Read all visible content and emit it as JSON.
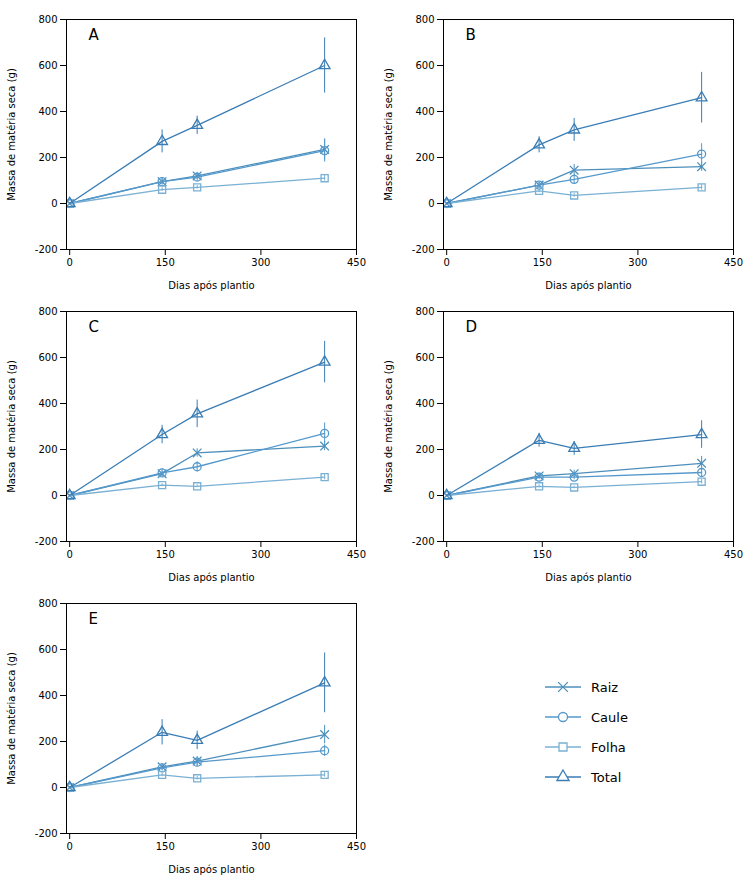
{
  "chart_data": [
    {
      "type": "line",
      "title": "A",
      "x": [
        0,
        145,
        200,
        400
      ],
      "xlabel": "Dias após plantio",
      "ylabel": "Massa de matéria seca (g)",
      "xlim": [
        -5,
        450
      ],
      "xticks": [
        0,
        150,
        300,
        450
      ],
      "ylim": [
        -200,
        800
      ],
      "yticks": [
        -200,
        0,
        200,
        400,
        600,
        800
      ],
      "grid": false,
      "series": [
        {
          "name": "Raiz",
          "color": "#4d8fbb",
          "marker": "x",
          "values": [
            0,
            95,
            120,
            235
          ],
          "yerr": [
            2,
            15,
            15,
            45
          ]
        },
        {
          "name": "Caule",
          "color": "#5599cc",
          "marker": "circle",
          "values": [
            0,
            95,
            115,
            230
          ],
          "yerr": [
            2,
            12,
            18,
            50
          ]
        },
        {
          "name": "Folha",
          "color": "#7ab0d4",
          "marker": "square",
          "values": [
            0,
            60,
            70,
            110
          ],
          "yerr": [
            2,
            8,
            8,
            12
          ]
        },
        {
          "name": "Total",
          "color": "#3a7db5",
          "marker": "triangle",
          "values": [
            0,
            270,
            340,
            600
          ],
          "yerr": [
            2,
            50,
            40,
            120
          ]
        }
      ]
    },
    {
      "type": "line",
      "title": "B",
      "x": [
        0,
        145,
        200,
        400
      ],
      "xlabel": "Dias após plantio",
      "ylabel": "Massa de matéria seca (g)",
      "xlim": [
        -5,
        450
      ],
      "xticks": [
        0,
        150,
        300,
        450
      ],
      "ylim": [
        -200,
        800
      ],
      "yticks": [
        -200,
        0,
        200,
        400,
        600,
        800
      ],
      "grid": false,
      "series": [
        {
          "name": "Raiz",
          "color": "#4d8fbb",
          "marker": "x",
          "values": [
            0,
            80,
            145,
            160
          ],
          "yerr": [
            2,
            12,
            25,
            20
          ]
        },
        {
          "name": "Caule",
          "color": "#5599cc",
          "marker": "circle",
          "values": [
            0,
            80,
            105,
            215
          ],
          "yerr": [
            2,
            12,
            20,
            45
          ]
        },
        {
          "name": "Folha",
          "color": "#7ab0d4",
          "marker": "square",
          "values": [
            0,
            55,
            35,
            70
          ],
          "yerr": [
            2,
            8,
            8,
            12
          ]
        },
        {
          "name": "Total",
          "color": "#3a7db5",
          "marker": "triangle",
          "values": [
            0,
            255,
            320,
            460
          ],
          "yerr": [
            2,
            35,
            50,
            110
          ]
        }
      ]
    },
    {
      "type": "line",
      "title": "C",
      "x": [
        0,
        145,
        200,
        400
      ],
      "xlabel": "Dias após plantio",
      "ylabel": "Massa de matéria seca (g)",
      "xlim": [
        -5,
        450
      ],
      "xticks": [
        0,
        150,
        300,
        450
      ],
      "ylim": [
        -200,
        800
      ],
      "yticks": [
        -200,
        0,
        200,
        400,
        600,
        800
      ],
      "grid": false,
      "series": [
        {
          "name": "Raiz",
          "color": "#4d8fbb",
          "marker": "x",
          "values": [
            0,
            95,
            185,
            215
          ],
          "yerr": [
            2,
            12,
            18,
            20
          ]
        },
        {
          "name": "Caule",
          "color": "#5599cc",
          "marker": "circle",
          "values": [
            0,
            98,
            125,
            270
          ],
          "yerr": [
            2,
            18,
            22,
            45
          ]
        },
        {
          "name": "Folha",
          "color": "#7ab0d4",
          "marker": "square",
          "values": [
            0,
            45,
            40,
            80
          ],
          "yerr": [
            2,
            6,
            6,
            12
          ]
        },
        {
          "name": "Total",
          "color": "#3a7db5",
          "marker": "triangle",
          "values": [
            0,
            265,
            355,
            580
          ],
          "yerr": [
            2,
            40,
            60,
            90
          ]
        }
      ]
    },
    {
      "type": "line",
      "title": "D",
      "x": [
        0,
        145,
        200,
        400
      ],
      "xlabel": "Dias após plantio",
      "ylabel": "Massa de matéria seca (g)",
      "xlim": [
        -5,
        450
      ],
      "xticks": [
        0,
        150,
        300,
        450
      ],
      "ylim": [
        -200,
        800
      ],
      "yticks": [
        -200,
        0,
        200,
        400,
        600,
        800
      ],
      "grid": false,
      "series": [
        {
          "name": "Raiz",
          "color": "#4d8fbb",
          "marker": "x",
          "values": [
            0,
            85,
            95,
            140
          ],
          "yerr": [
            2,
            12,
            15,
            30
          ]
        },
        {
          "name": "Caule",
          "color": "#5599cc",
          "marker": "circle",
          "values": [
            0,
            80,
            80,
            100
          ],
          "yerr": [
            2,
            10,
            12,
            18
          ]
        },
        {
          "name": "Folha",
          "color": "#7ab0d4",
          "marker": "square",
          "values": [
            0,
            40,
            35,
            60
          ],
          "yerr": [
            2,
            6,
            6,
            10
          ]
        },
        {
          "name": "Total",
          "color": "#3a7db5",
          "marker": "triangle",
          "values": [
            0,
            240,
            205,
            265
          ],
          "yerr": [
            2,
            30,
            30,
            60
          ]
        }
      ]
    },
    {
      "type": "line",
      "title": "E",
      "x": [
        0,
        145,
        200,
        400
      ],
      "xlabel": "Dias após plantio",
      "ylabel": "Massa de matéria seca (g)",
      "xlim": [
        -5,
        450
      ],
      "xticks": [
        0,
        150,
        300,
        450
      ],
      "ylim": [
        -200,
        800
      ],
      "yticks": [
        -200,
        0,
        200,
        400,
        600,
        800
      ],
      "grid": false,
      "series": [
        {
          "name": "Raiz",
          "color": "#4d8fbb",
          "marker": "x",
          "values": [
            0,
            90,
            115,
            230
          ],
          "yerr": [
            2,
            15,
            20,
            40
          ]
        },
        {
          "name": "Caule",
          "color": "#5599cc",
          "marker": "circle",
          "values": [
            0,
            85,
            110,
            160
          ],
          "yerr": [
            2,
            12,
            18,
            25
          ]
        },
        {
          "name": "Folha",
          "color": "#7ab0d4",
          "marker": "square",
          "values": [
            0,
            55,
            40,
            55
          ],
          "yerr": [
            2,
            8,
            8,
            10
          ]
        },
        {
          "name": "Total",
          "color": "#3a7db5",
          "marker": "triangle",
          "values": [
            0,
            240,
            205,
            455
          ],
          "yerr": [
            2,
            55,
            40,
            130
          ]
        }
      ]
    }
  ]
}
